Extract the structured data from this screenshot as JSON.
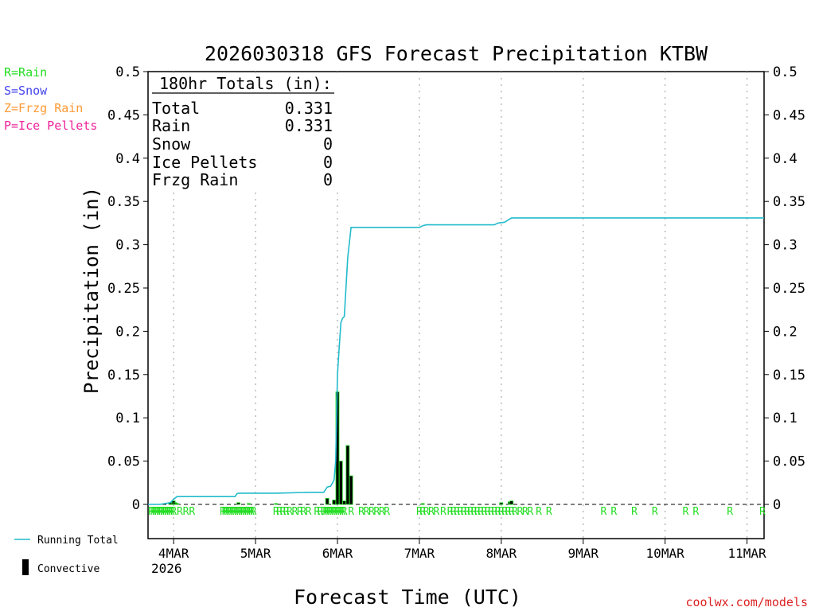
{
  "chart_data": {
    "type": "bar",
    "title": "2026030318 GFS Forecast Precipitation KTBW",
    "xlabel": "Forecast Time (UTC)",
    "ylabel": "Precipitation (in)",
    "ylim": [
      0,
      0.5
    ],
    "yticks": [
      0,
      0.05,
      0.1,
      0.15,
      0.2,
      0.25,
      0.3,
      0.35,
      0.4,
      0.45,
      0.5
    ],
    "ytick_labels": [
      "0",
      "0.05",
      "0.1",
      "0.15",
      "0.2",
      "0.25",
      "0.3",
      "0.35",
      "0.4",
      "0.45",
      "0.5"
    ],
    "xlim_hours": [
      -7.5,
      173
    ],
    "xticks": [
      {
        "label": "4MAR",
        "hour": 0
      },
      {
        "label": "5MAR",
        "hour": 24
      },
      {
        "label": "6MAR",
        "hour": 48
      },
      {
        "label": "7MAR",
        "hour": 72
      },
      {
        "label": "8MAR",
        "hour": 96
      },
      {
        "label": "9MAR",
        "hour": 120
      },
      {
        "label": "10MAR",
        "hour": 144
      },
      {
        "label": "11MAR",
        "hour": 168
      }
    ],
    "year_label": "2026",
    "hour_axis_note": "hours after 00 UTC 4MAR (forecast init 18 UTC 3MAR)",
    "legend": {
      "types": [
        {
          "label": "R=Rain",
          "color": "#22dd22"
        },
        {
          "label": "S=Snow",
          "color": "#4444ee"
        },
        {
          "label": "Z=Frzg Rain",
          "color": "#ff9933"
        },
        {
          "label": "P=Ice Pellets",
          "color": "#ee2299"
        }
      ],
      "running_total_label": "Running Total",
      "convective_label": "Convective"
    },
    "totals": {
      "title": "180hr Totals (in):",
      "rows": [
        {
          "label": "Total",
          "value": "0.331"
        },
        {
          "label": "Rain",
          "value": "0.331"
        },
        {
          "label": "Snow",
          "value": "0"
        },
        {
          "label": "Ice Pellets",
          "value": "0"
        },
        {
          "label": "Frzg Rain",
          "value": "0"
        }
      ]
    },
    "series": [
      {
        "name": "Running Total",
        "color": "#22bbcc",
        "points": [
          [
            -7.5,
            0
          ],
          [
            -4,
            0
          ],
          [
            -1,
            0.002
          ],
          [
            0,
            0.006
          ],
          [
            1,
            0.009
          ],
          [
            2,
            0.009
          ],
          [
            18,
            0.009
          ],
          [
            18.5,
            0.012
          ],
          [
            19,
            0.013
          ],
          [
            30,
            0.013
          ],
          [
            40,
            0.014
          ],
          [
            44,
            0.014
          ],
          [
            45,
            0.02
          ],
          [
            46,
            0.021
          ],
          [
            47,
            0.028
          ],
          [
            47.5,
            0.05
          ],
          [
            48,
            0.15
          ],
          [
            48.5,
            0.18
          ],
          [
            49,
            0.21
          ],
          [
            49.5,
            0.215
          ],
          [
            50,
            0.217
          ],
          [
            51,
            0.285
          ],
          [
            52,
            0.32
          ],
          [
            72,
            0.32
          ],
          [
            73,
            0.322
          ],
          [
            74,
            0.323
          ],
          [
            94,
            0.323
          ],
          [
            95,
            0.325
          ],
          [
            97,
            0.326
          ],
          [
            99,
            0.331
          ],
          [
            173,
            0.331
          ]
        ]
      },
      {
        "name": "Precipitation",
        "type": "bar",
        "points": [
          [
            -1,
            0.002
          ],
          [
            0,
            0.004
          ],
          [
            0.5,
            0.002
          ],
          [
            1,
            0.001
          ],
          [
            19,
            0.002
          ],
          [
            22,
            0.001
          ],
          [
            30,
            0.001
          ],
          [
            45,
            0.007
          ],
          [
            47,
            0.005
          ],
          [
            48,
            0.13
          ],
          [
            49,
            0.05
          ],
          [
            50,
            0.004
          ],
          [
            51,
            0.068
          ],
          [
            52,
            0.033
          ],
          [
            73,
            0.001
          ],
          [
            96,
            0.002
          ],
          [
            98.5,
            0.003
          ],
          [
            99,
            0.004
          ]
        ]
      }
    ],
    "precip_type_markers": {
      "symbol": "R",
      "hours": [
        -6.6,
        -6,
        -5.4,
        -4.8,
        -4.2,
        -3.6,
        -3,
        -2.4,
        -1.8,
        -1.2,
        -0.6,
        0,
        1.8,
        3.6,
        5.4,
        14.4,
        15,
        15.6,
        16.2,
        16.8,
        17.4,
        18,
        18.6,
        19.2,
        19.8,
        20.4,
        21,
        21.6,
        22.2,
        22.8,
        23.4,
        30,
        31,
        32,
        33,
        34,
        35.5,
        37,
        38,
        39.5,
        42,
        43,
        44,
        44.6,
        45.2,
        45.8,
        46.4,
        47,
        47.6,
        48.2,
        48.8,
        49.4,
        50,
        52,
        55,
        56.5,
        58,
        59.5,
        61,
        62.5,
        72,
        73,
        74,
        75.5,
        77,
        79,
        81,
        82,
        83,
        84,
        85,
        86,
        87,
        88,
        89,
        90,
        91,
        92,
        93,
        94,
        95,
        96,
        97,
        98,
        99,
        100,
        101.5,
        103,
        104.5,
        107,
        110,
        126,
        129,
        135,
        141,
        150,
        153,
        163,
        172.5
      ]
    }
  },
  "credit": "coolwx.com/models"
}
